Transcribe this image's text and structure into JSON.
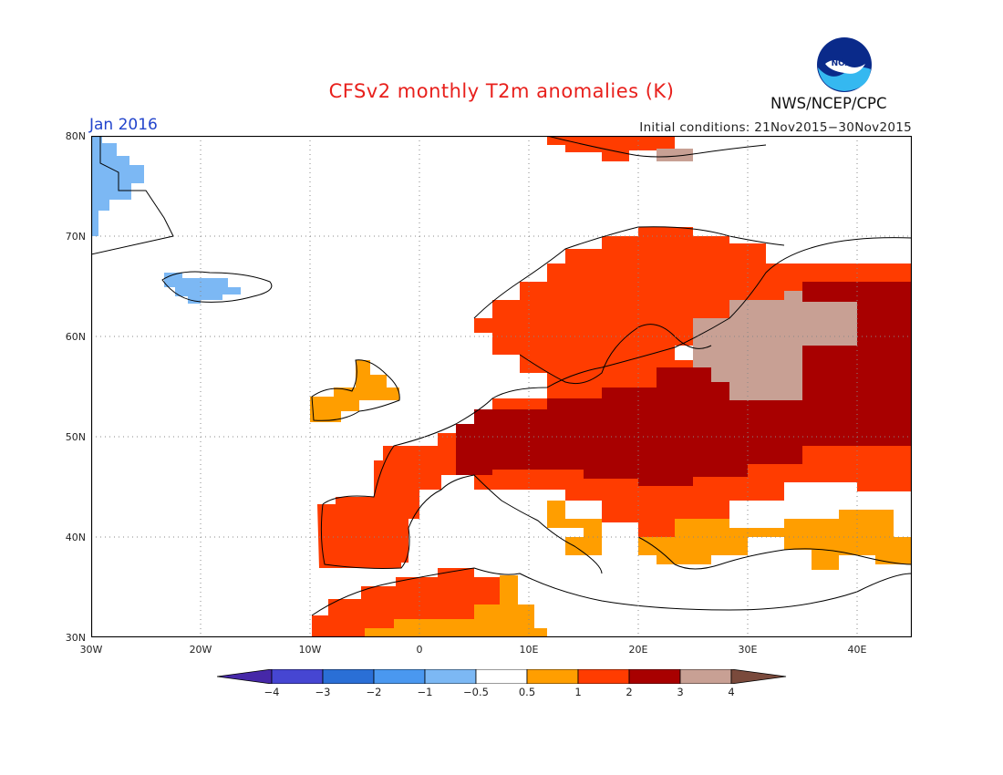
{
  "title": "CFSv2 monthly T2m anomalies (K)",
  "month": "Jan 2016",
  "initial_conditions": "Initial conditions: 21Nov2015−30Nov2015",
  "organization": "NWS/NCEP/CPC",
  "logo_text": "NOAA",
  "map": {
    "lat_labels": [
      "80N",
      "70N",
      "60N",
      "50N",
      "40N",
      "30N"
    ],
    "lon_labels": [
      "30W",
      "20W",
      "10W",
      "0",
      "10E",
      "20E",
      "30E",
      "40E"
    ],
    "lon_range": [
      -30,
      45
    ],
    "lat_range": [
      30,
      80
    ],
    "regions": [
      {
        "name": "greenland",
        "anomaly_class": "-1"
      },
      {
        "name": "iceland",
        "anomaly_class": "-1"
      },
      {
        "name": "ireland",
        "anomaly_class": "0.5"
      },
      {
        "name": "iberia",
        "anomaly_class": "1"
      },
      {
        "name": "north-africa-west",
        "anomaly_class": "1"
      },
      {
        "name": "north-africa-east",
        "anomaly_class": "0.5"
      },
      {
        "name": "scandinavia",
        "anomaly_class": "1"
      },
      {
        "name": "central-europe",
        "anomaly_class": "2"
      },
      {
        "name": "western-russia",
        "anomaly_class": "3"
      },
      {
        "name": "anatolia",
        "anomaly_class": "0.5"
      },
      {
        "name": "svalbard",
        "anomaly_class": "1"
      }
    ]
  },
  "legend": {
    "labels": [
      "−4",
      "−3",
      "−2",
      "−1",
      "−0.5",
      "0.5",
      "1",
      "2",
      "3",
      "4"
    ],
    "colors": [
      "#4628a8",
      "#4646d2",
      "#2a6fd6",
      "#4a98f0",
      "#7cb8f4",
      "#ffffff",
      "#ff9e00",
      "#ff3c00",
      "#a80000",
      "#c8a094",
      "#7a4a3c"
    ]
  }
}
